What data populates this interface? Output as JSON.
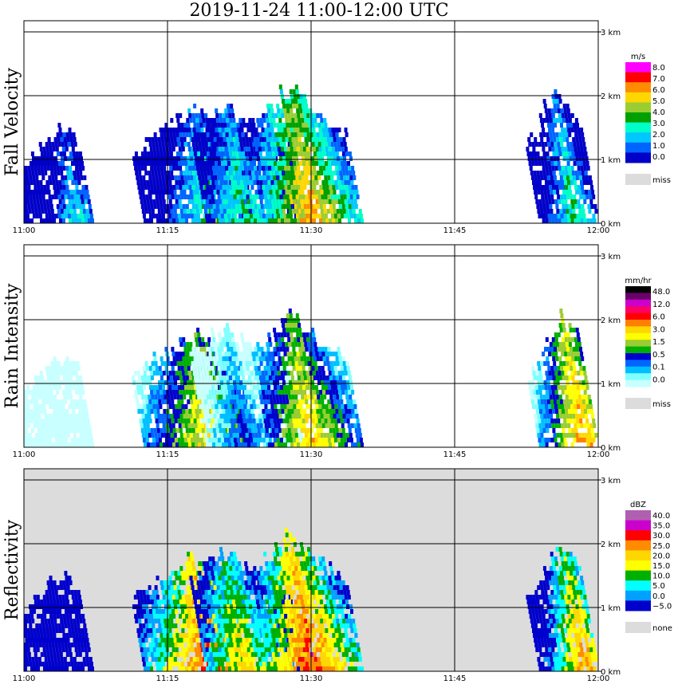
{
  "title": "2019-11-24   11:00-12:00 UTC",
  "chart_data": [
    {
      "type": "heatmap",
      "ylabel": "Fall Velocity",
      "x_ticks": [
        "11:00",
        "11:15",
        "11:30",
        "11:45",
        "12:00"
      ],
      "y_ticks": [
        "0 km",
        "1 km",
        "2 km",
        "3 km"
      ],
      "xlim_minutes": [
        0,
        60
      ],
      "ylim_km": [
        0,
        3
      ],
      "background": "#ffffff",
      "colorbar": {
        "unit": "m/s",
        "labels": [
          "8.0",
          "7.0",
          "6.0",
          "5.0",
          "4.0",
          "3.0",
          "2.0",
          "1.0",
          "0.0"
        ],
        "colors": [
          "#ff00ff",
          "#ff0000",
          "#ff8c00",
          "#ffd700",
          "#9acd32",
          "#00a000",
          "#00ffc8",
          "#00c8ff",
          "#0064ff",
          "#0000c8"
        ],
        "missing_label": "miss",
        "missing_color": "#dcdcdc"
      },
      "echoes": [
        {
          "t0": 0.0,
          "t1": 7.2,
          "top_km": 1.6,
          "base_km": 0.0,
          "peak_t": 5.5,
          "level": 4
        },
        {
          "t0": 12.5,
          "t1": 24.0,
          "top_km": 1.9,
          "base_km": 0.0,
          "peak_t": 19.5,
          "level": 5
        },
        {
          "t0": 19.0,
          "t1": 29.0,
          "top_km": 2.0,
          "base_km": 0.0,
          "peak_t": 23.0,
          "level": 5
        },
        {
          "t0": 25.5,
          "t1": 35.5,
          "top_km": 2.25,
          "base_km": 0.0,
          "peak_t": 30.0,
          "level": 8
        },
        {
          "t0": 53.8,
          "t1": 60.0,
          "top_km": 2.15,
          "base_km": 0.0,
          "peak_t": 57.5,
          "level": 5
        }
      ]
    },
    {
      "type": "heatmap",
      "ylabel": "Rain Intensity",
      "x_ticks": [
        "11:00",
        "11:15",
        "11:30",
        "11:45",
        "12:00"
      ],
      "y_ticks": [
        "0 km",
        "1 km",
        "2 km",
        "3 km"
      ],
      "xlim_minutes": [
        0,
        60
      ],
      "ylim_km": [
        0,
        3
      ],
      "background": "#ffffff",
      "colorbar": {
        "unit": "mm/hr",
        "labels": [
          "48.0",
          "12.0",
          "6.0",
          "3.0",
          "1.5",
          "0.5",
          "0.1",
          "0.0"
        ],
        "colors": [
          "#000000",
          "#6a006a",
          "#cc00cc",
          "#ff0066",
          "#ff0000",
          "#ff7f00",
          "#ffd700",
          "#ffff00",
          "#9acd32",
          "#00b000",
          "#0000cd",
          "#0066ff",
          "#00bfff",
          "#7fffff",
          "#c8ffff"
        ],
        "missing_label": "miss",
        "missing_color": "#dcdcdc"
      },
      "echoes": [
        {
          "t0": 0.0,
          "t1": 7.2,
          "top_km": 1.5,
          "base_km": 0.0,
          "peak_t": 5.5,
          "level": 1
        },
        {
          "t0": 12.5,
          "t1": 24.0,
          "top_km": 1.9,
          "base_km": 0.0,
          "peak_t": 19.5,
          "level": 9
        },
        {
          "t0": 19.0,
          "t1": 29.0,
          "top_km": 2.0,
          "base_km": 0.0,
          "peak_t": 23.0,
          "level": 5
        },
        {
          "t0": 25.5,
          "t1": 35.5,
          "top_km": 2.2,
          "base_km": 0.0,
          "peak_t": 30.0,
          "level": 9
        },
        {
          "t0": 53.8,
          "t1": 60.0,
          "top_km": 2.15,
          "base_km": 0.0,
          "peak_t": 58.5,
          "level": 10
        }
      ]
    },
    {
      "type": "heatmap",
      "ylabel": "Reflectivity",
      "x_ticks": [
        "11:00",
        "11:15",
        "11:30",
        "11:45",
        "12:00"
      ],
      "y_ticks": [
        "0 km",
        "1 km",
        "2 km",
        "3 km"
      ],
      "xlim_minutes": [
        0,
        60
      ],
      "ylim_km": [
        0,
        3
      ],
      "background": "#dcdcdc",
      "colorbar": {
        "unit": "dBZ",
        "labels": [
          "40.0",
          "35.0",
          "30.0",
          "25.0",
          "20.0",
          "15.0",
          "10.0",
          "5.0",
          "0.0",
          "−5.0"
        ],
        "colors": [
          "#b060b0",
          "#cc00cc",
          "#ff0000",
          "#ff8c00",
          "#ffd700",
          "#ffff00",
          "#00b000",
          "#00ffff",
          "#00a0ff",
          "#0000cd"
        ],
        "missing_label": "none",
        "missing_color": "#dcdcdc"
      },
      "echoes": [
        {
          "t0": 0.0,
          "t1": 7.2,
          "top_km": 1.6,
          "base_km": 0.0,
          "peak_t": 5.5,
          "level": 1
        },
        {
          "t0": 12.5,
          "t1": 24.0,
          "top_km": 1.9,
          "base_km": 0.0,
          "peak_t": 19.5,
          "level": 8
        },
        {
          "t0": 19.0,
          "t1": 29.0,
          "top_km": 2.0,
          "base_km": 0.0,
          "peak_t": 23.0,
          "level": 6
        },
        {
          "t0": 25.5,
          "t1": 35.5,
          "top_km": 2.25,
          "base_km": 0.0,
          "peak_t": 30.0,
          "level": 8
        },
        {
          "t0": 53.8,
          "t1": 60.0,
          "top_km": 2.15,
          "base_km": 0.0,
          "peak_t": 58.5,
          "level": 7
        }
      ]
    }
  ]
}
